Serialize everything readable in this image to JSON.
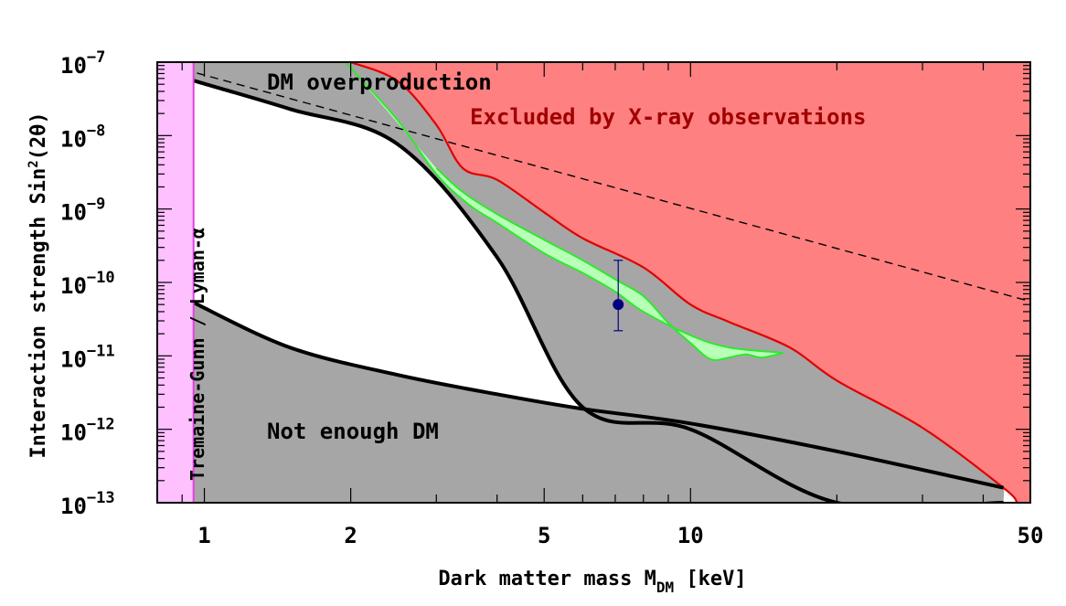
{
  "chart_data": {
    "type": "line",
    "x_scale": "log",
    "y_scale": "log",
    "xlim": [
      0.8,
      50
    ],
    "ylim": [
      1e-13,
      1e-07
    ],
    "xlabel": {
      "text": "Dark matter mass M",
      "sub": "DM",
      "unit": " [keV]"
    },
    "ylabel": {
      "text": "Interaction strength Sin",
      "sup": "2",
      "tail": "(2θ)"
    },
    "x_ticks": [
      {
        "value": 1,
        "label": "1"
      },
      {
        "value": 2,
        "label": "2"
      },
      {
        "value": 5,
        "label": "5"
      },
      {
        "value": 10,
        "label": "10"
      },
      {
        "value": 50,
        "label": "50"
      }
    ],
    "y_ticks": [
      {
        "value": 1e-07,
        "base": "10",
        "exp": "−7"
      },
      {
        "value": 1e-08,
        "base": "10",
        "exp": "−8"
      },
      {
        "value": 1e-09,
        "base": "10",
        "exp": "−9"
      },
      {
        "value": 1e-10,
        "base": "10",
        "exp": "−10"
      },
      {
        "value": 1e-11,
        "base": "10",
        "exp": "−11"
      },
      {
        "value": 1e-12,
        "base": "10",
        "exp": "−12"
      },
      {
        "value": 1e-13,
        "base": "10",
        "exp": "−13"
      }
    ],
    "colors": {
      "xray": "#ff8080",
      "xray_edge": "#e00000",
      "xray_text": "#a00000",
      "green_fill": "#b8ffb8",
      "green_edge": "#22ee22",
      "gray": "#a6a6a6",
      "pink": "#ffc0ff",
      "pink_edge": "#e040e0",
      "point": "#000080"
    },
    "series": [
      {
        "name": "DM overproduction boundary",
        "x": [
          0.95,
          1.5,
          2.5,
          4,
          6,
          10,
          20,
          44
        ],
        "y": [
          5.6e-08,
          2.3e-08,
          7.6e-09,
          2.2e-10,
          2e-12,
          1e-12,
          1e-13,
          1e-13
        ]
      },
      {
        "name": "Not enough DM boundary",
        "x": [
          0.95,
          1.5,
          2.5,
          4,
          6,
          10,
          20,
          44
        ],
        "y": [
          5.3e-11,
          1.3e-11,
          5.5e-12,
          3e-12,
          1.9e-12,
          1.2e-12,
          5e-13,
          1.6e-13
        ]
      },
      {
        "name": "X-ray exclusion boundary",
        "x": [
          2,
          2.5,
          3,
          3.4,
          4,
          5,
          6,
          8,
          10,
          12,
          16,
          20,
          30,
          44,
          47
        ],
        "y": [
          1e-07,
          5.5e-08,
          1.4e-08,
          3.6e-09,
          2.5e-09,
          9e-10,
          4e-10,
          1.6e-10,
          5e-11,
          2.9e-11,
          1.3e-11,
          4.6e-12,
          1.05e-12,
          1.6e-13,
          1e-13
        ]
      },
      {
        "name": "Green band upper",
        "x": [
          1.95,
          2.5,
          3,
          3.5,
          4,
          5,
          6,
          7,
          8,
          10,
          12,
          15.5
        ],
        "y": [
          1e-07,
          1.6e-08,
          3e-09,
          1.15e-09,
          6.5e-10,
          2.5e-10,
          1.35e-10,
          7.5e-11,
          4e-11,
          1.9e-11,
          1.3e-11,
          1.1e-11
        ]
      },
      {
        "name": "Green band lower",
        "x": [
          15.5,
          14,
          13,
          12,
          11,
          10,
          9,
          8,
          7,
          6,
          5,
          4,
          3.4,
          3
        ],
        "y": [
          1.1e-11,
          9.5e-12,
          1.05e-11,
          9.5e-12,
          9e-12,
          1.5e-11,
          2.8e-11,
          6.5e-11,
          1.1e-10,
          2e-10,
          3.8e-10,
          8.5e-10,
          1.7e-09,
          3.6e-09
        ]
      },
      {
        "name": "Dashed line",
        "x": [
          0.8,
          50
        ],
        "y": [
          1e-07,
          5.5e-11
        ]
      }
    ],
    "points": [
      {
        "name": "3.5 keV line",
        "x": 7.1,
        "y": 5e-11,
        "y_low": 2.2e-11,
        "y_high": 2e-10
      }
    ],
    "tremaine_gunn_limit": {
      "x_min": 0.8,
      "x_max": 0.95
    },
    "labels": {
      "overproduction": "DM overproduction",
      "not_enough": "Not enough DM",
      "xray": "Excluded by X-ray observations",
      "tremaine": "Tremaine-Gunn / Lyman-α"
    }
  }
}
